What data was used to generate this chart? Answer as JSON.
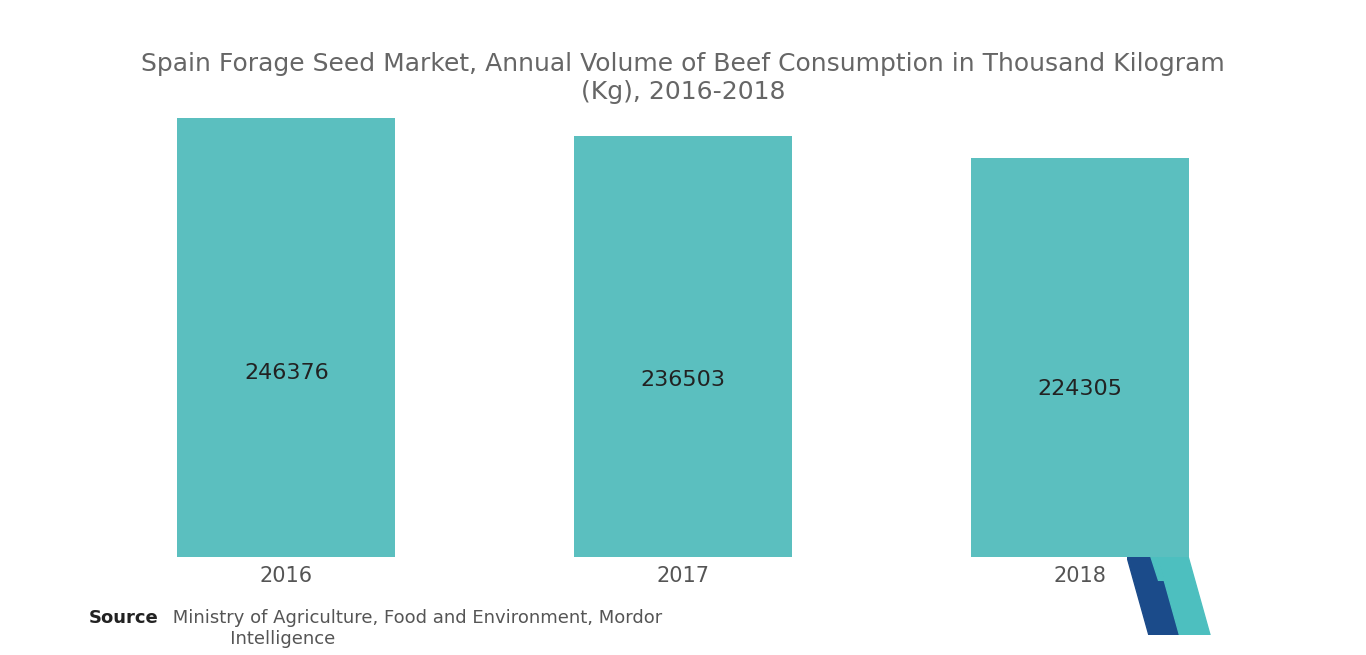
{
  "title": "Spain Forage Seed Market, Annual Volume of Beef Consumption in Thousand Kilogram\n(Kg), 2016-2018",
  "categories": [
    "2016",
    "2017",
    "2018"
  ],
  "values": [
    246376,
    236503,
    224305
  ],
  "bar_color": "#5BBFBF",
  "label_color": "#222222",
  "background_color": "#ffffff",
  "title_color": "#666666",
  "source_bold": "Source",
  "source_normal": " Ministry of Agriculture, Food and Environment, Mordor\n           Intelligence",
  "title_fontsize": 18,
  "label_fontsize": 16,
  "tick_fontsize": 15,
  "source_fontsize": 13,
  "ylim": [
    0,
    265000
  ],
  "bar_width": 0.55
}
